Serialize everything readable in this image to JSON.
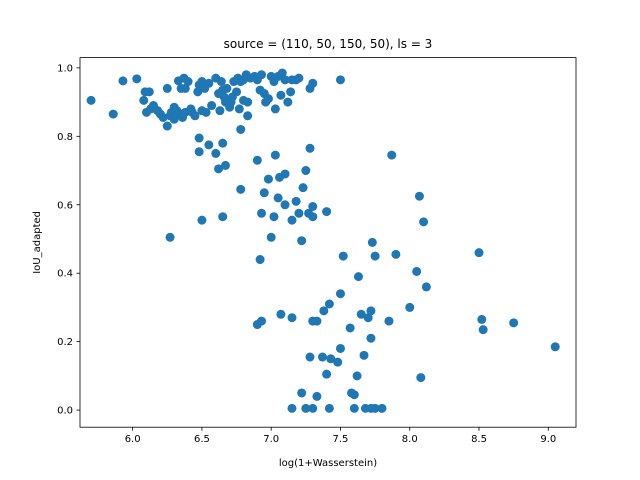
{
  "chart_data": {
    "type": "scatter",
    "title": "source = (110, 50, 150, 50), ls = 3",
    "xlabel": "log(1+Wasserstein)",
    "ylabel": "IoU_adapted",
    "xlim": [
      5.62,
      9.2
    ],
    "ylim": [
      -0.05,
      1.03
    ],
    "xticks": [
      "6.0",
      "6.5",
      "7.0",
      "7.5",
      "8.0",
      "8.5",
      "9.0"
    ],
    "xtick_values": [
      6.0,
      6.5,
      7.0,
      7.5,
      8.0,
      8.5,
      9.0
    ],
    "yticks": [
      "0.0",
      "0.2",
      "0.4",
      "0.6",
      "0.8",
      "1.0"
    ],
    "ytick_values": [
      0.0,
      0.2,
      0.4,
      0.6,
      0.8,
      1.0
    ],
    "grid": false,
    "marker_color": "#1f77b4",
    "points": [
      [
        5.7,
        0.905
      ],
      [
        5.86,
        0.865
      ],
      [
        5.93,
        0.962
      ],
      [
        6.03,
        0.968
      ],
      [
        6.08,
        0.905
      ],
      [
        6.09,
        0.93
      ],
      [
        6.1,
        0.87
      ],
      [
        6.12,
        0.93
      ],
      [
        6.13,
        0.88
      ],
      [
        6.15,
        0.89
      ],
      [
        6.18,
        0.875
      ],
      [
        6.2,
        0.865
      ],
      [
        6.22,
        0.855
      ],
      [
        6.25,
        0.83
      ],
      [
        6.25,
        0.94
      ],
      [
        6.27,
        0.86
      ],
      [
        6.28,
        0.87
      ],
      [
        6.3,
        0.85
      ],
      [
        6.3,
        0.885
      ],
      [
        6.32,
        0.875
      ],
      [
        6.33,
        0.962
      ],
      [
        6.34,
        0.865
      ],
      [
        6.35,
        0.94
      ],
      [
        6.36,
        0.855
      ],
      [
        6.37,
        0.97
      ],
      [
        6.38,
        0.87
      ],
      [
        6.38,
        0.94
      ],
      [
        6.4,
        0.96
      ],
      [
        6.42,
        0.88
      ],
      [
        6.43,
        0.87
      ],
      [
        6.45,
        0.86
      ],
      [
        6.47,
        0.93
      ],
      [
        6.48,
        0.95
      ],
      [
        6.5,
        0.875
      ],
      [
        6.5,
        0.96
      ],
      [
        6.52,
        0.94
      ],
      [
        6.53,
        0.87
      ],
      [
        6.55,
        0.955
      ],
      [
        6.57,
        0.89
      ],
      [
        6.6,
        0.97
      ],
      [
        6.62,
        0.925
      ],
      [
        6.63,
        0.875
      ],
      [
        6.64,
        0.96
      ],
      [
        6.65,
        0.935
      ],
      [
        6.66,
        0.915
      ],
      [
        6.67,
        0.9
      ],
      [
        6.68,
        0.94
      ],
      [
        6.7,
        0.885
      ],
      [
        6.71,
        0.9
      ],
      [
        6.72,
        0.915
      ],
      [
        6.73,
        0.96
      ],
      [
        6.75,
        0.93
      ],
      [
        6.76,
        0.97
      ],
      [
        6.77,
        0.88
      ],
      [
        6.78,
        0.96
      ],
      [
        6.8,
        0.905
      ],
      [
        6.8,
        0.965
      ],
      [
        6.82,
        0.98
      ],
      [
        6.83,
        0.9
      ],
      [
        6.85,
        0.97
      ],
      [
        6.88,
        0.975
      ],
      [
        6.9,
        0.965
      ],
      [
        6.92,
        0.935
      ],
      [
        6.93,
        0.98
      ],
      [
        6.95,
        0.925
      ],
      [
        6.96,
        0.9
      ],
      [
        6.98,
        0.91
      ],
      [
        7.0,
        0.975
      ],
      [
        7.02,
        0.96
      ],
      [
        7.03,
        0.88
      ],
      [
        7.05,
        0.975
      ],
      [
        7.07,
        0.92
      ],
      [
        7.08,
        0.985
      ],
      [
        7.1,
        0.965
      ],
      [
        7.12,
        0.9
      ],
      [
        7.14,
        0.93
      ],
      [
        7.15,
        0.965
      ],
      [
        7.18,
        0.965
      ],
      [
        7.2,
        0.97
      ],
      [
        7.28,
        0.94
      ],
      [
        7.3,
        0.955
      ],
      [
        7.5,
        0.965
      ],
      [
        6.48,
        0.795
      ],
      [
        6.55,
        0.775
      ],
      [
        6.6,
        0.75
      ],
      [
        6.62,
        0.705
      ],
      [
        6.65,
        0.78
      ],
      [
        6.67,
        0.715
      ],
      [
        6.78,
        0.82
      ],
      [
        6.83,
        0.86
      ],
      [
        6.48,
        0.755
      ],
      [
        7.28,
        0.765
      ],
      [
        6.5,
        0.555
      ],
      [
        6.27,
        0.505
      ],
      [
        6.65,
        0.565
      ],
      [
        6.78,
        0.645
      ],
      [
        6.9,
        0.73
      ],
      [
        6.93,
        0.575
      ],
      [
        6.95,
        0.635
      ],
      [
        6.98,
        0.675
      ],
      [
        7.0,
        0.505
      ],
      [
        7.02,
        0.565
      ],
      [
        7.03,
        0.745
      ],
      [
        7.05,
        0.62
      ],
      [
        7.06,
        0.68
      ],
      [
        7.1,
        0.6
      ],
      [
        7.1,
        0.69
      ],
      [
        7.15,
        0.555
      ],
      [
        7.18,
        0.61
      ],
      [
        7.2,
        0.575
      ],
      [
        7.22,
        0.495
      ],
      [
        7.23,
        0.65
      ],
      [
        7.25,
        0.7
      ],
      [
        7.27,
        0.575
      ],
      [
        7.3,
        0.595
      ],
      [
        7.3,
        0.565
      ],
      [
        7.4,
        0.58
      ],
      [
        6.92,
        0.44
      ],
      [
        6.9,
        0.25
      ],
      [
        6.93,
        0.26
      ],
      [
        7.07,
        0.28
      ],
      [
        7.15,
        0.27
      ],
      [
        7.3,
        0.26
      ],
      [
        7.33,
        0.26
      ],
      [
        7.38,
        0.29
      ],
      [
        7.42,
        0.31
      ],
      [
        7.5,
        0.34
      ],
      [
        7.52,
        0.45
      ],
      [
        7.57,
        0.24
      ],
      [
        7.63,
        0.39
      ],
      [
        7.65,
        0.28
      ],
      [
        7.7,
        0.27
      ],
      [
        7.72,
        0.29
      ],
      [
        7.73,
        0.49
      ],
      [
        7.75,
        0.45
      ],
      [
        7.85,
        0.26
      ],
      [
        7.87,
        0.745
      ],
      [
        7.9,
        0.455
      ],
      [
        8.0,
        0.3
      ],
      [
        8.05,
        0.405
      ],
      [
        8.07,
        0.625
      ],
      [
        8.1,
        0.55
      ],
      [
        8.12,
        0.36
      ],
      [
        8.5,
        0.46
      ],
      [
        8.52,
        0.265
      ],
      [
        8.53,
        0.235
      ],
      [
        8.75,
        0.255
      ],
      [
        9.05,
        0.185
      ],
      [
        7.28,
        0.155
      ],
      [
        7.37,
        0.155
      ],
      [
        7.4,
        0.105
      ],
      [
        7.43,
        0.15
      ],
      [
        7.48,
        0.14
      ],
      [
        7.5,
        0.18
      ],
      [
        7.58,
        0.05
      ],
      [
        7.6,
        0.045
      ],
      [
        7.62,
        0.1
      ],
      [
        7.67,
        0.16
      ],
      [
        7.72,
        0.21
      ],
      [
        7.15,
        0.005
      ],
      [
        7.22,
        0.05
      ],
      [
        7.25,
        0.005
      ],
      [
        7.3,
        0.005
      ],
      [
        7.33,
        0.04
      ],
      [
        7.42,
        0.005
      ],
      [
        7.6,
        0.005
      ],
      [
        7.68,
        0.005
      ],
      [
        7.72,
        0.005
      ],
      [
        7.75,
        0.005
      ],
      [
        7.8,
        0.005
      ],
      [
        8.08,
        0.095
      ]
    ]
  }
}
